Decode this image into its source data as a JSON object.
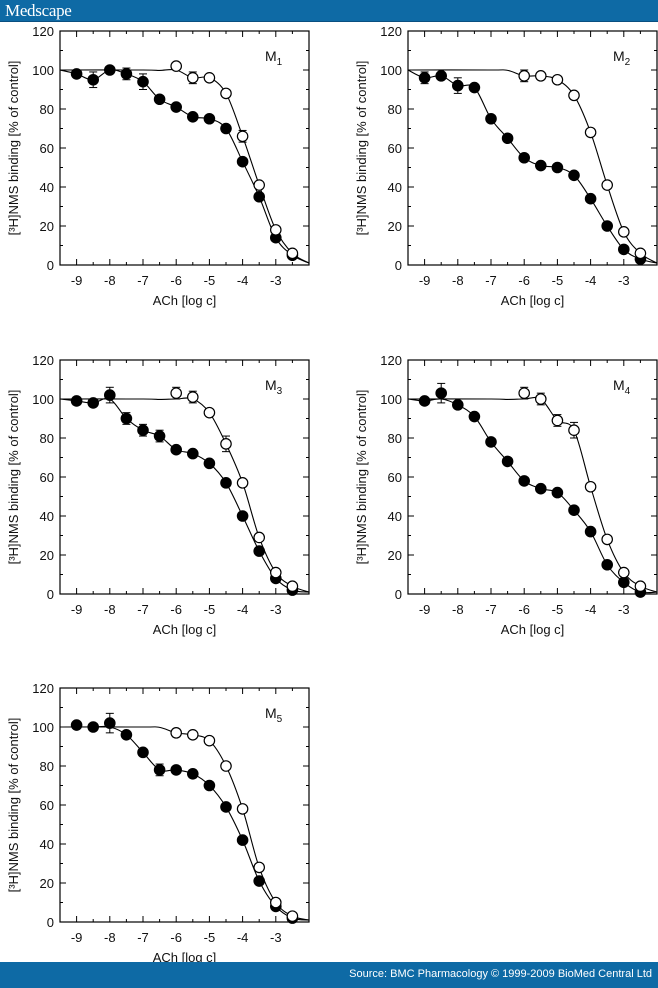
{
  "header": {
    "brand": "Medscape"
  },
  "footer": {
    "source": "Source: BMC Pharmacology © 1999-2009 BioMed Central Ltd"
  },
  "colors": {
    "header_bar": "#0e6aa5",
    "filled_marker": "#000000",
    "open_marker": "#ffffff"
  },
  "chart_data": [
    {
      "type": "scatter",
      "label": "M",
      "label_sub": "1",
      "xlabel": "ACh [log c]",
      "ylabel": "[³H]NMS binding [% of control]",
      "xlim": [
        -9.5,
        -2
      ],
      "ylim": [
        0,
        120
      ],
      "xticks": [
        -9,
        -8,
        -7,
        -6,
        -5,
        -4,
        -3
      ],
      "yticks": [
        0,
        20,
        40,
        60,
        80,
        100,
        120
      ],
      "grid": false,
      "series": [
        {
          "marker": "filled",
          "x": [
            -9,
            -8.5,
            -8,
            -7.5,
            -7,
            -6.5,
            -6,
            -5.5,
            -5,
            -4.5,
            -4,
            -3.5,
            -3,
            -2.5
          ],
          "y": [
            98,
            95,
            100,
            98,
            94,
            85,
            81,
            76,
            75,
            70,
            53,
            35,
            14,
            5
          ],
          "err": [
            0,
            4,
            0,
            3,
            4,
            0,
            0,
            0,
            0,
            0,
            0,
            0,
            0,
            0
          ]
        },
        {
          "marker": "open",
          "x": [
            -6,
            -5.5,
            -5,
            -4.5,
            -4,
            -3.5,
            -3,
            -2.5
          ],
          "y": [
            102,
            96,
            96,
            88,
            66,
            41,
            18,
            6
          ],
          "err": [
            0,
            3,
            0,
            0,
            3,
            0,
            0,
            0
          ]
        }
      ]
    },
    {
      "type": "scatter",
      "label": "M",
      "label_sub": "2",
      "xlabel": "ACh [log c]",
      "ylabel": "[³H]NMS binding [% of control]",
      "xlim": [
        -9.5,
        -2
      ],
      "ylim": [
        0,
        120
      ],
      "xticks": [
        -9,
        -8,
        -7,
        -6,
        -5,
        -4,
        -3
      ],
      "yticks": [
        0,
        20,
        40,
        60,
        80,
        100,
        120
      ],
      "grid": false,
      "series": [
        {
          "marker": "filled",
          "x": [
            -9,
            -8.5,
            -8,
            -7.5,
            -7,
            -6.5,
            -6,
            -5.5,
            -5,
            -4.5,
            -4,
            -3.5,
            -3,
            -2.5
          ],
          "y": [
            96,
            97,
            92,
            91,
            75,
            65,
            55,
            51,
            50,
            46,
            34,
            20,
            8,
            3
          ],
          "err": [
            3,
            0,
            4,
            0,
            0,
            0,
            0,
            0,
            0,
            0,
            0,
            0,
            0,
            0
          ]
        },
        {
          "marker": "open",
          "x": [
            -6,
            -5.5,
            -5,
            -4.5,
            -4,
            -3.5,
            -3,
            -2.5
          ],
          "y": [
            97,
            97,
            95,
            87,
            68,
            41,
            17,
            6
          ],
          "err": [
            3,
            0,
            0,
            0,
            0,
            0,
            0,
            0
          ]
        }
      ]
    },
    {
      "type": "scatter",
      "label": "M",
      "label_sub": "3",
      "xlabel": "ACh [log c]",
      "ylabel": "[³H]NMS binding [% of control]",
      "xlim": [
        -9.5,
        -2
      ],
      "ylim": [
        0,
        120
      ],
      "xticks": [
        -9,
        -8,
        -7,
        -6,
        -5,
        -4,
        -3
      ],
      "yticks": [
        0,
        20,
        40,
        60,
        80,
        100,
        120
      ],
      "grid": false,
      "series": [
        {
          "marker": "filled",
          "x": [
            -9,
            -8.5,
            -8,
            -7.5,
            -7,
            -6.5,
            -6,
            -5.5,
            -5,
            -4.5,
            -4,
            -3.5,
            -3,
            -2.5
          ],
          "y": [
            99,
            98,
            102,
            90,
            84,
            81,
            74,
            72,
            67,
            57,
            40,
            22,
            8,
            2
          ],
          "err": [
            2,
            0,
            4,
            3,
            3,
            3,
            0,
            0,
            0,
            0,
            0,
            0,
            0,
            0
          ]
        },
        {
          "marker": "open",
          "x": [
            -6,
            -5.5,
            -5,
            -4.5,
            -4,
            -3.5,
            -3,
            -2.5
          ],
          "y": [
            103,
            101,
            93,
            77,
            57,
            29,
            11,
            4
          ],
          "err": [
            3,
            3,
            0,
            4,
            0,
            0,
            0,
            0
          ]
        }
      ]
    },
    {
      "type": "scatter",
      "label": "M",
      "label_sub": "4",
      "xlabel": "ACh [log c]",
      "ylabel": "[³H]NMS binding [% of control]",
      "xlim": [
        -9.5,
        -2
      ],
      "ylim": [
        0,
        120
      ],
      "xticks": [
        -9,
        -8,
        -7,
        -6,
        -5,
        -4,
        -3
      ],
      "yticks": [
        0,
        20,
        40,
        60,
        80,
        100,
        120
      ],
      "grid": false,
      "series": [
        {
          "marker": "filled",
          "x": [
            -9,
            -8.5,
            -8,
            -7.5,
            -7,
            -6.5,
            -6,
            -5.5,
            -5,
            -4.5,
            -4,
            -3.5,
            -3,
            -2.5
          ],
          "y": [
            99,
            103,
            97,
            91,
            78,
            68,
            58,
            54,
            52,
            43,
            32,
            15,
            6,
            1
          ],
          "err": [
            0,
            5,
            0,
            0,
            0,
            0,
            0,
            0,
            0,
            0,
            0,
            0,
            0,
            0
          ]
        },
        {
          "marker": "open",
          "x": [
            -6,
            -5.5,
            -5,
            -4.5,
            -4,
            -3.5,
            -3,
            -2.5
          ],
          "y": [
            103,
            100,
            89,
            84,
            55,
            28,
            11,
            4
          ],
          "err": [
            3,
            3,
            3,
            4,
            0,
            0,
            0,
            0
          ]
        }
      ]
    },
    {
      "type": "scatter",
      "label": "M",
      "label_sub": "5",
      "xlabel": "ACh [log c]",
      "ylabel": "[³H]NMS binding [% of control]",
      "xlim": [
        -9.5,
        -2
      ],
      "ylim": [
        0,
        120
      ],
      "xticks": [
        -9,
        -8,
        -7,
        -6,
        -5,
        -4,
        -3
      ],
      "yticks": [
        0,
        20,
        40,
        60,
        80,
        100,
        120
      ],
      "grid": false,
      "series": [
        {
          "marker": "filled",
          "x": [
            -9,
            -8.5,
            -8,
            -7.5,
            -7,
            -6.5,
            -6,
            -5.5,
            -5,
            -4.5,
            -4,
            -3.5,
            -3,
            -2.5
          ],
          "y": [
            101,
            100,
            102,
            96,
            87,
            78,
            78,
            76,
            70,
            59,
            42,
            21,
            8,
            2
          ],
          "err": [
            0,
            0,
            5,
            0,
            0,
            3,
            0,
            2,
            0,
            0,
            0,
            0,
            0,
            0
          ]
        },
        {
          "marker": "open",
          "x": [
            -6,
            -5.5,
            -5,
            -4.5,
            -4,
            -3.5,
            -3,
            -2.5
          ],
          "y": [
            97,
            96,
            93,
            80,
            58,
            28,
            10,
            3
          ],
          "err": [
            2,
            0,
            0,
            0,
            0,
            0,
            0,
            0
          ]
        }
      ]
    }
  ]
}
